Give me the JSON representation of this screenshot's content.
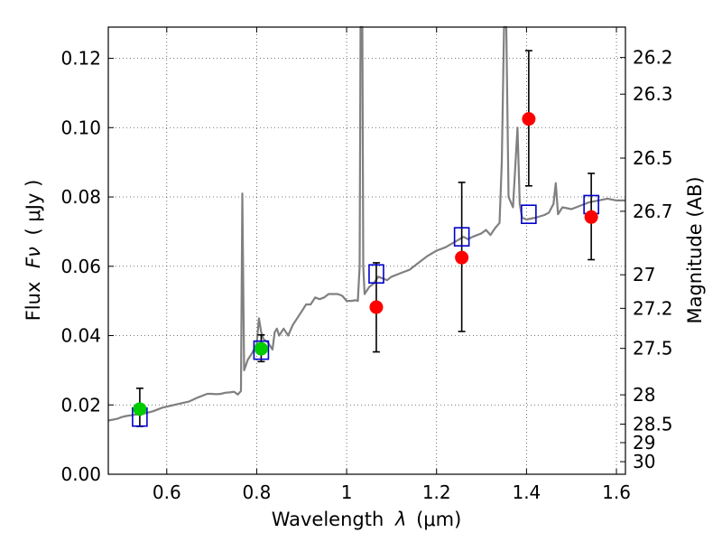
{
  "chart_data": {
    "type": "scatter",
    "xlabel_prefix": "Wavelength",
    "xlabel_symbol": "λ",
    "xlabel_unit": "(μm)",
    "ylabel_prefix": "Flux",
    "ylabel_symbol": "Fν",
    "ylabel_unit": "( μJy )",
    "y2label": "Magnitude (AB)",
    "xlim": [
      0.47,
      1.62
    ],
    "ylim": [
      0.0,
      0.129
    ],
    "x_ticks": [
      {
        "value": 0.6,
        "label": "0.6"
      },
      {
        "value": 0.8,
        "label": "0.8"
      },
      {
        "value": 1.0,
        "label": "1"
      },
      {
        "value": 1.2,
        "label": "1.2"
      },
      {
        "value": 1.4,
        "label": "1.4"
      },
      {
        "value": 1.6,
        "label": "1.6"
      }
    ],
    "y_ticks": [
      {
        "value": 0.0,
        "label": "0.00"
      },
      {
        "value": 0.02,
        "label": "0.02"
      },
      {
        "value": 0.04,
        "label": "0.04"
      },
      {
        "value": 0.06,
        "label": "0.06"
      },
      {
        "value": 0.08,
        "label": "0.08"
      },
      {
        "value": 0.1,
        "label": "0.10"
      },
      {
        "value": 0.12,
        "label": "0.12"
      }
    ],
    "mag_ticks": [
      {
        "mag": 26.2,
        "label": "26.2"
      },
      {
        "mag": 26.3,
        "label": "26.3"
      },
      {
        "mag": 26.5,
        "label": "26.5"
      },
      {
        "mag": 26.7,
        "label": "26.7"
      },
      {
        "mag": 27.0,
        "label": "27"
      },
      {
        "mag": 27.2,
        "label": "27.2"
      },
      {
        "mag": 27.5,
        "label": "27.5"
      },
      {
        "mag": 28.0,
        "label": "28"
      },
      {
        "mag": 28.5,
        "label": "28.5"
      },
      {
        "mag": 29.0,
        "label": "29"
      },
      {
        "mag": 30.0,
        "label": "30"
      }
    ],
    "grid": true,
    "colors": {
      "spectrum": "#808080",
      "observed": "#ff0000",
      "observed_alt": "#00cc00",
      "model_box": "#0000cc",
      "errorbar": "#000000"
    },
    "spectrum": [
      [
        0.47,
        0.0155
      ],
      [
        0.49,
        0.016
      ],
      [
        0.5,
        0.0165
      ],
      [
        0.51,
        0.0168
      ],
      [
        0.52,
        0.017
      ],
      [
        0.53,
        0.0172
      ],
      [
        0.55,
        0.0175
      ],
      [
        0.57,
        0.0182
      ],
      [
        0.59,
        0.0192
      ],
      [
        0.61,
        0.0198
      ],
      [
        0.63,
        0.0204
      ],
      [
        0.65,
        0.021
      ],
      [
        0.67,
        0.0222
      ],
      [
        0.69,
        0.0232
      ],
      [
        0.7,
        0.0232
      ],
      [
        0.71,
        0.0231
      ],
      [
        0.72,
        0.0232
      ],
      [
        0.73,
        0.0235
      ],
      [
        0.74,
        0.0236
      ],
      [
        0.75,
        0.0238
      ],
      [
        0.758,
        0.023
      ],
      [
        0.765,
        0.024
      ],
      [
        0.768,
        0.081
      ],
      [
        0.772,
        0.03
      ],
      [
        0.78,
        0.033
      ],
      [
        0.79,
        0.035
      ],
      [
        0.8,
        0.0375
      ],
      [
        0.805,
        0.045
      ],
      [
        0.81,
        0.041
      ],
      [
        0.815,
        0.039
      ],
      [
        0.825,
        0.038
      ],
      [
        0.835,
        0.036
      ],
      [
        0.84,
        0.041
      ],
      [
        0.845,
        0.042
      ],
      [
        0.85,
        0.04
      ],
      [
        0.86,
        0.042
      ],
      [
        0.87,
        0.04
      ],
      [
        0.88,
        0.043
      ],
      [
        0.89,
        0.045
      ],
      [
        0.9,
        0.047
      ],
      [
        0.91,
        0.049
      ],
      [
        0.92,
        0.049
      ],
      [
        0.93,
        0.051
      ],
      [
        0.94,
        0.0505
      ],
      [
        0.95,
        0.051
      ],
      [
        0.96,
        0.052
      ],
      [
        0.97,
        0.052
      ],
      [
        0.98,
        0.052
      ],
      [
        0.99,
        0.0515
      ],
      [
        1.0,
        0.05
      ],
      [
        1.01,
        0.05
      ],
      [
        1.02,
        0.0502
      ],
      [
        1.025,
        0.05
      ],
      [
        1.029,
        0.06
      ],
      [
        1.031,
        0.13
      ],
      [
        1.035,
        0.13
      ],
      [
        1.037,
        0.06
      ],
      [
        1.04,
        0.052
      ],
      [
        1.05,
        0.054
      ],
      [
        1.06,
        0.055
      ],
      [
        1.07,
        0.057
      ],
      [
        1.08,
        0.0565
      ],
      [
        1.09,
        0.056
      ],
      [
        1.1,
        0.057
      ],
      [
        1.12,
        0.058
      ],
      [
        1.14,
        0.059
      ],
      [
        1.16,
        0.061
      ],
      [
        1.18,
        0.063
      ],
      [
        1.2,
        0.0645
      ],
      [
        1.22,
        0.0655
      ],
      [
        1.24,
        0.067
      ],
      [
        1.26,
        0.0685
      ],
      [
        1.27,
        0.0678
      ],
      [
        1.28,
        0.0685
      ],
      [
        1.3,
        0.0695
      ],
      [
        1.31,
        0.0705
      ],
      [
        1.32,
        0.069
      ],
      [
        1.33,
        0.071
      ],
      [
        1.34,
        0.0725
      ],
      [
        1.345,
        0.09
      ],
      [
        1.35,
        0.13
      ],
      [
        1.355,
        0.13
      ],
      [
        1.36,
        0.08
      ],
      [
        1.37,
        0.077
      ],
      [
        1.38,
        0.1
      ],
      [
        1.385,
        0.078
      ],
      [
        1.39,
        0.074
      ],
      [
        1.4,
        0.0735
      ],
      [
        1.42,
        0.074
      ],
      [
        1.44,
        0.0748
      ],
      [
        1.45,
        0.0755
      ],
      [
        1.46,
        0.078
      ],
      [
        1.465,
        0.084
      ],
      [
        1.47,
        0.075
      ],
      [
        1.48,
        0.077
      ],
      [
        1.5,
        0.0765
      ],
      [
        1.52,
        0.0775
      ],
      [
        1.54,
        0.0785
      ],
      [
        1.56,
        0.079
      ],
      [
        1.58,
        0.0795
      ],
      [
        1.6,
        0.079
      ],
      [
        1.62,
        0.079
      ]
    ],
    "observed": [
      {
        "x": 0.54,
        "y": 0.0188,
        "lower": 0.0138,
        "upper": 0.0248,
        "color": "green"
      },
      {
        "x": 0.81,
        "y": 0.0362,
        "lower": 0.0325,
        "upper": 0.0402,
        "color": "green"
      },
      {
        "x": 1.066,
        "y": 0.0482,
        "lower": 0.0353,
        "upper": 0.061,
        "color": "red"
      },
      {
        "x": 1.256,
        "y": 0.0625,
        "lower": 0.0412,
        "upper": 0.0842,
        "color": "red"
      },
      {
        "x": 1.405,
        "y": 0.1025,
        "lower": 0.0832,
        "upper": 0.1222,
        "color": "red"
      },
      {
        "x": 1.544,
        "y": 0.0742,
        "lower": 0.0619,
        "upper": 0.0868,
        "color": "red"
      }
    ],
    "model": [
      {
        "x": 0.54,
        "y": 0.0165
      },
      {
        "x": 0.81,
        "y": 0.0358
      },
      {
        "x": 1.066,
        "y": 0.0578
      },
      {
        "x": 1.256,
        "y": 0.0685
      },
      {
        "x": 1.405,
        "y": 0.075
      },
      {
        "x": 1.544,
        "y": 0.0778
      }
    ]
  }
}
